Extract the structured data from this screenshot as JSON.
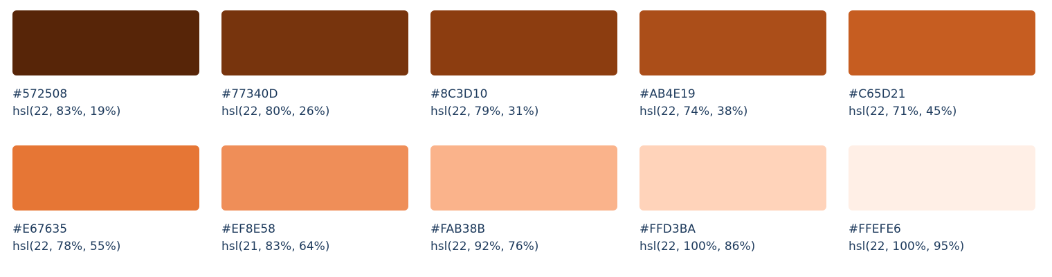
{
  "swatches": [
    {
      "hex": "#572508",
      "hsl": "hsl(22, 83%, 19%)",
      "color": "#572508"
    },
    {
      "hex": "#77340D",
      "hsl": "hsl(22, 80%, 26%)",
      "color": "#77340D"
    },
    {
      "hex": "#8C3D10",
      "hsl": "hsl(22, 79%, 31%)",
      "color": "#8C3D10"
    },
    {
      "hex": "#AB4E19",
      "hsl": "hsl(22, 74%, 38%)",
      "color": "#AB4E19"
    },
    {
      "hex": "#C65D21",
      "hsl": "hsl(22, 71%, 45%)",
      "color": "#C65D21"
    },
    {
      "hex": "#E67635",
      "hsl": "hsl(22, 78%, 55%)",
      "color": "#E67635"
    },
    {
      "hex": "#EF8E58",
      "hsl": "hsl(21, 83%, 64%)",
      "color": "#EF8E58"
    },
    {
      "hex": "#FAB38B",
      "hsl": "hsl(22, 92%, 76%)",
      "color": "#FAB38B"
    },
    {
      "hex": "#FFD3BA",
      "hsl": "hsl(22, 100%, 86%)",
      "color": "#FFD3BA"
    },
    {
      "hex": "#FFEFE6",
      "hsl": "hsl(22, 100%, 95%)",
      "color": "#FFEFE6"
    }
  ]
}
